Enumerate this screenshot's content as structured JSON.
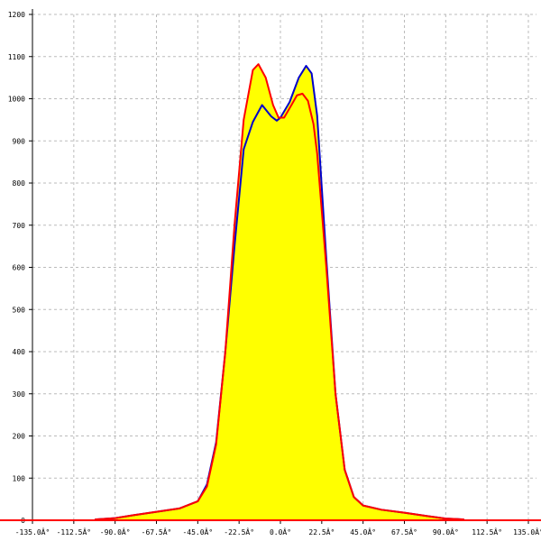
{
  "chart_data": {
    "type": "area",
    "title": "",
    "xlabel": "",
    "ylabel": "",
    "xlim": [
      -135,
      135
    ],
    "ylim": [
      0,
      1200
    ],
    "grid": true,
    "fill_color": "#ffff00",
    "x_ticks": [
      -135,
      -112.5,
      -90,
      -67.5,
      -45,
      -22.5,
      0,
      22.5,
      45,
      67.5,
      90,
      112.5,
      135
    ],
    "x_tick_labels": [
      "-135.0Â°",
      "-112.5Â°",
      "-90.0Â°",
      "-67.5Â°",
      "-45.0Â°",
      "-22.5Â°",
      "0.0Â°",
      "22.5Â°",
      "45.0Â°",
      "67.5Â°",
      "90.0Â°",
      "112.5Â°",
      "135.0Â°"
    ],
    "y_ticks": [
      0,
      100,
      200,
      300,
      400,
      500,
      600,
      700,
      800,
      900,
      1000,
      1100,
      1200
    ],
    "y_tick_labels": [
      "0",
      "100",
      "200",
      "300",
      "400",
      "500",
      "600",
      "700",
      "800",
      "900",
      "1000",
      "1100",
      "1200"
    ],
    "series": [
      {
        "color": "#0000cc",
        "points": [
          [
            -101,
            2
          ],
          [
            -90,
            5
          ],
          [
            -80,
            12
          ],
          [
            -67.5,
            20
          ],
          [
            -55,
            28
          ],
          [
            -45,
            45
          ],
          [
            -40,
            85
          ],
          [
            -35,
            185
          ],
          [
            -30,
            400
          ],
          [
            -25,
            650
          ],
          [
            -20,
            880
          ],
          [
            -15,
            945
          ],
          [
            -10,
            985
          ],
          [
            -5,
            958
          ],
          [
            -2,
            948
          ],
          [
            0,
            955
          ],
          [
            5,
            992
          ],
          [
            10,
            1050
          ],
          [
            14,
            1078
          ],
          [
            17,
            1060
          ],
          [
            20,
            960
          ],
          [
            25,
            620
          ],
          [
            30,
            300
          ],
          [
            35,
            120
          ],
          [
            40,
            55
          ],
          [
            45,
            35
          ],
          [
            55,
            25
          ],
          [
            67.5,
            18
          ],
          [
            80,
            10
          ],
          [
            90,
            4
          ],
          [
            100,
            2
          ]
        ]
      },
      {
        "color": "#ff0000",
        "points": [
          [
            -101,
            2
          ],
          [
            -90,
            5
          ],
          [
            -80,
            12
          ],
          [
            -67.5,
            20
          ],
          [
            -55,
            28
          ],
          [
            -45,
            45
          ],
          [
            -40,
            80
          ],
          [
            -35,
            180
          ],
          [
            -30,
            400
          ],
          [
            -25,
            700
          ],
          [
            -20,
            950
          ],
          [
            -15,
            1068
          ],
          [
            -12,
            1082
          ],
          [
            -8,
            1050
          ],
          [
            -4,
            985
          ],
          [
            -1,
            955
          ],
          [
            2,
            955
          ],
          [
            6,
            985
          ],
          [
            9,
            1008
          ],
          [
            12,
            1012
          ],
          [
            15,
            995
          ],
          [
            18,
            940
          ],
          [
            20,
            870
          ],
          [
            25,
            600
          ],
          [
            30,
            300
          ],
          [
            35,
            120
          ],
          [
            40,
            55
          ],
          [
            45,
            35
          ],
          [
            55,
            25
          ],
          [
            67.5,
            18
          ],
          [
            80,
            10
          ],
          [
            90,
            4
          ],
          [
            100,
            2
          ]
        ]
      }
    ]
  }
}
